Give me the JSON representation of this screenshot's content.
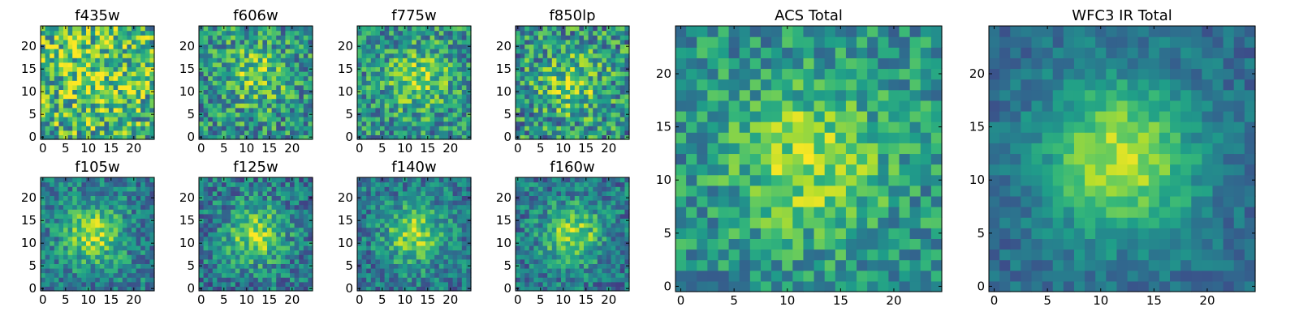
{
  "chart_data": [
    {
      "type": "heatmap",
      "title": "f435w",
      "grid_size": 25,
      "x_ticks": [
        "0",
        "5",
        "10",
        "15",
        "20"
      ],
      "y_ticks": [
        "0",
        "5",
        "10",
        "15",
        "20"
      ],
      "peak_center": [
        12,
        14
      ],
      "peak_sigma": 7,
      "peak_amp": 0.18,
      "noise": 0.36,
      "base": 0.62,
      "seed": 11,
      "colormap": "viridis"
    },
    {
      "type": "heatmap",
      "title": "f606w",
      "grid_size": 25,
      "x_ticks": [
        "0",
        "5",
        "10",
        "15",
        "20"
      ],
      "y_ticks": [
        "0",
        "5",
        "10",
        "15",
        "20"
      ],
      "peak_center": [
        12,
        14
      ],
      "peak_sigma": 5,
      "peak_amp": 0.28,
      "noise": 0.3,
      "base": 0.5,
      "seed": 23,
      "colormap": "viridis"
    },
    {
      "type": "heatmap",
      "title": "f775w",
      "grid_size": 25,
      "x_ticks": [
        "0",
        "5",
        "10",
        "15",
        "20"
      ],
      "y_ticks": [
        "0",
        "5",
        "10",
        "15",
        "20"
      ],
      "peak_center": [
        13,
        13
      ],
      "peak_sigma": 5,
      "peak_amp": 0.3,
      "noise": 0.28,
      "base": 0.5,
      "seed": 37,
      "colormap": "viridis"
    },
    {
      "type": "heatmap",
      "title": "f850lp",
      "grid_size": 25,
      "x_ticks": [
        "0",
        "5",
        "10",
        "15",
        "20"
      ],
      "y_ticks": [
        "0",
        "5",
        "10",
        "15",
        "20"
      ],
      "peak_center": [
        12,
        12
      ],
      "peak_sigma": 5,
      "peak_amp": 0.28,
      "noise": 0.32,
      "base": 0.5,
      "seed": 41,
      "colormap": "viridis"
    },
    {
      "type": "heatmap",
      "title": "f105w",
      "grid_size": 25,
      "x_ticks": [
        "0",
        "5",
        "10",
        "15",
        "20"
      ],
      "y_ticks": [
        "0",
        "5",
        "10",
        "15",
        "20"
      ],
      "peak_center": [
        11,
        12
      ],
      "peak_sigma": 4.5,
      "peak_amp": 0.45,
      "noise": 0.22,
      "base": 0.42,
      "seed": 53,
      "colormap": "viridis"
    },
    {
      "type": "heatmap",
      "title": "f125w",
      "grid_size": 25,
      "x_ticks": [
        "0",
        "5",
        "10",
        "15",
        "20"
      ],
      "y_ticks": [
        "0",
        "5",
        "10",
        "15",
        "20"
      ],
      "peak_center": [
        12,
        12
      ],
      "peak_sigma": 4.5,
      "peak_amp": 0.45,
      "noise": 0.24,
      "base": 0.4,
      "seed": 67,
      "colormap": "viridis"
    },
    {
      "type": "heatmap",
      "title": "f140w",
      "grid_size": 25,
      "x_ticks": [
        "0",
        "5",
        "10",
        "15",
        "20"
      ],
      "y_ticks": [
        "0",
        "5",
        "10",
        "15",
        "20"
      ],
      "peak_center": [
        12,
        12
      ],
      "peak_sigma": 4.5,
      "peak_amp": 0.45,
      "noise": 0.22,
      "base": 0.4,
      "seed": 79,
      "colormap": "viridis"
    },
    {
      "type": "heatmap",
      "title": "f160w",
      "grid_size": 25,
      "x_ticks": [
        "0",
        "5",
        "10",
        "15",
        "20"
      ],
      "y_ticks": [
        "0",
        "5",
        "10",
        "15",
        "20"
      ],
      "peak_center": [
        12,
        12
      ],
      "peak_sigma": 4.5,
      "peak_amp": 0.45,
      "noise": 0.22,
      "base": 0.4,
      "seed": 83,
      "colormap": "viridis"
    },
    {
      "type": "heatmap",
      "title": "ACS Total",
      "grid_size": 25,
      "x_ticks": [
        "0",
        "5",
        "10",
        "15",
        "20"
      ],
      "y_ticks": [
        "0",
        "5",
        "10",
        "15",
        "20"
      ],
      "peak_center": [
        12,
        12
      ],
      "peak_sigma": 5,
      "peak_amp": 0.35,
      "noise": 0.22,
      "base": 0.5,
      "seed": 97,
      "colormap": "viridis"
    },
    {
      "type": "heatmap",
      "title": "WFC3 IR Total",
      "grid_size": 25,
      "x_ticks": [
        "0",
        "5",
        "10",
        "15",
        "20"
      ],
      "y_ticks": [
        "0",
        "5",
        "10",
        "15",
        "20"
      ],
      "peak_center": [
        12,
        12
      ],
      "peak_sigma": 5,
      "peak_amp": 0.55,
      "noise": 0.12,
      "base": 0.35,
      "seed": 101,
      "colormap": "viridis"
    }
  ]
}
